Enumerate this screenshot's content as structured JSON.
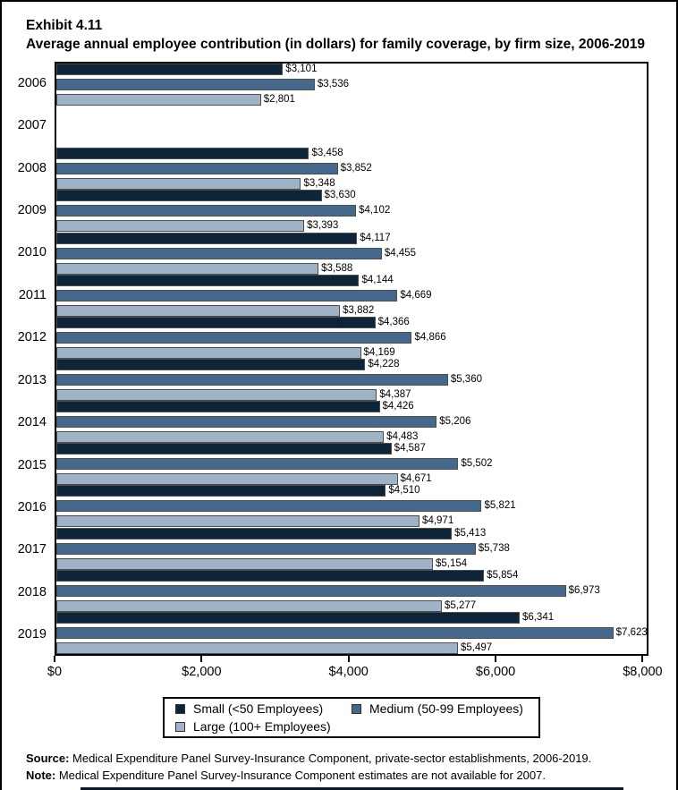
{
  "title": {
    "exhibit": "Exhibit 4.11",
    "subtitle": "Average annual employee contribution (in dollars) for family coverage, by firm size, 2006-2019"
  },
  "chart_data": {
    "type": "bar",
    "orientation": "horizontal",
    "title": "Average annual employee contribution (in dollars) for family coverage, by firm size, 2006-2019",
    "categories": [
      "2006",
      "2007",
      "2008",
      "2009",
      "2010",
      "2011",
      "2012",
      "2013",
      "2014",
      "2015",
      "2016",
      "2017",
      "2018",
      "2019"
    ],
    "series": [
      {
        "name": "Small (<50 Employees)",
        "color": "#0e2539",
        "values": [
          3101,
          null,
          3458,
          3630,
          4117,
          4144,
          4366,
          4228,
          4426,
          4587,
          4510,
          5413,
          5854,
          6341
        ]
      },
      {
        "name": "Medium (50-99 Employees)",
        "color": "#44698d",
        "values": [
          3536,
          null,
          3852,
          4102,
          4455,
          4669,
          4866,
          5360,
          5206,
          5502,
          5821,
          5738,
          6973,
          7623
        ]
      },
      {
        "name": "Large (100+ Employees)",
        "color": "#9eb3c7",
        "values": [
          2801,
          null,
          3348,
          3393,
          3588,
          3882,
          4169,
          4387,
          4483,
          4671,
          4971,
          5154,
          5277,
          5497
        ]
      }
    ],
    "xlabel": "",
    "ylabel": "",
    "x_ticks": [
      "$0",
      "$2,000",
      "$4,000",
      "$6,000",
      "$8,000"
    ],
    "x_tick_values": [
      0,
      2000,
      4000,
      6000,
      8000
    ],
    "xlim": [
      0,
      8080
    ],
    "grid": false,
    "legend_position": "bottom",
    "value_label_prefix": "$",
    "note_missing_year": "2007"
  },
  "legend": {
    "items": [
      {
        "label": "Small (<50 Employees)",
        "color": "#0e2539"
      },
      {
        "label": "Medium (50-99 Employees)",
        "color": "#44698d"
      },
      {
        "label": "Large (100+ Employees)",
        "color": "#9eb3c7"
      }
    ]
  },
  "footer": {
    "source_label": "Source:",
    "source_text": " Medical Expenditure Panel Survey-Insurance Component, private-sector establishments, 2006-2019.",
    "note_label": "Note:",
    "note_text": " Medical Expenditure Panel Survey-Insurance Component estimates are not available for 2007."
  }
}
